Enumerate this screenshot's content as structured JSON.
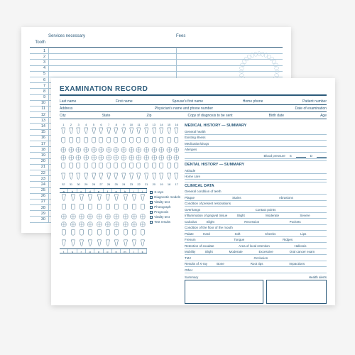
{
  "back": {
    "col_tooth": "Tooth",
    "col_services": "Services necessary",
    "col_fees": "Fees",
    "row_count": 30
  },
  "front": {
    "title": "EXAMINATION RECORD",
    "row1": {
      "last": "Last name",
      "first": "First name",
      "spouse": "Spouse's first name",
      "home": "Home phone",
      "patient": "Patient number"
    },
    "row2": {
      "address": "Address",
      "physician": "Physician's name and phone number",
      "date": "Date of examination"
    },
    "row3": {
      "city": "City",
      "state": "State",
      "zip": "Zip",
      "copy": "Copy of diagnosis to be sent",
      "birth": "Birth date",
      "age": "Age"
    },
    "adult_nums_top": [
      "1",
      "2",
      "3",
      "4",
      "5",
      "6",
      "7",
      "8",
      "9",
      "10",
      "11",
      "12",
      "13",
      "14",
      "15",
      "16"
    ],
    "adult_nums_bottom": [
      "32",
      "31",
      "30",
      "29",
      "28",
      "27",
      "26",
      "25",
      "24",
      "23",
      "22",
      "21",
      "20",
      "19",
      "18",
      "17"
    ],
    "kid_letters_top": [
      "a",
      "b",
      "c",
      "d",
      "e",
      "f",
      "g",
      "h",
      "i",
      "j"
    ],
    "kid_letters_bottom": [
      "t",
      "s",
      "r",
      "q",
      "p",
      "o",
      "n",
      "m",
      "l",
      "k"
    ],
    "checklist": [
      "X-rays",
      "Diagnostic models",
      "Vitality test",
      "Photograph",
      "Prognosis",
      "Vitality test",
      "Test results"
    ],
    "med": {
      "hdr": "MEDICAL HISTORY — SUMMARY",
      "items": [
        "General health",
        "Existing illness",
        "Medication/drugs",
        "Allergies"
      ],
      "bp": "Blood pressure",
      "s": "S",
      "d": "D"
    },
    "dental": {
      "hdr": "DENTAL HISTORY — SUMMARY",
      "items": [
        "Attitude",
        "Home care"
      ]
    },
    "clinical": {
      "hdr": "CLINICAL DATA",
      "l1": "General condition of teeth",
      "l2a": "Plaque",
      "l2b": "Stains",
      "l2c": "Abrasions",
      "l3": "Condition of present restorations",
      "l4a": "Overhangs",
      "l4b": "Contact points",
      "l5a": "Inflammation of gingival tissue",
      "slight": "Slight",
      "moderate": "Moderate",
      "severe": "Severe",
      "l6a": "Calculus",
      "l6b": "Recession",
      "l6c": "Pockets",
      "l7": "Condition of the floor of the mouth",
      "l8a": "Palate",
      "hard": "Hard",
      "soft": "Soft",
      "l8b": "Cheeks",
      "l8c": "Lips",
      "l9a": "Frenum",
      "l9b": "Tongue",
      "l9c": "Ridges",
      "l10a": "Retention of exudate",
      "l10b": "Area of local retention",
      "l10c": "Halitosis",
      "l11a": "Mobility",
      "l11b": "Excessive",
      "l11c": "Oral cancer exam",
      "l12a": "TMJ",
      "l12b": "Occlusion",
      "l13a": "Results of X-ray",
      "l13b": "Bone",
      "l13c": "Root tips",
      "l13d": "Impactions",
      "l14": "Other"
    },
    "summary_label": "Summary",
    "alerts_label": "Health alerts"
  },
  "colors": {
    "ink": "#2b5a7a",
    "light": "#a7c4d6",
    "paper": "#ffffff"
  }
}
